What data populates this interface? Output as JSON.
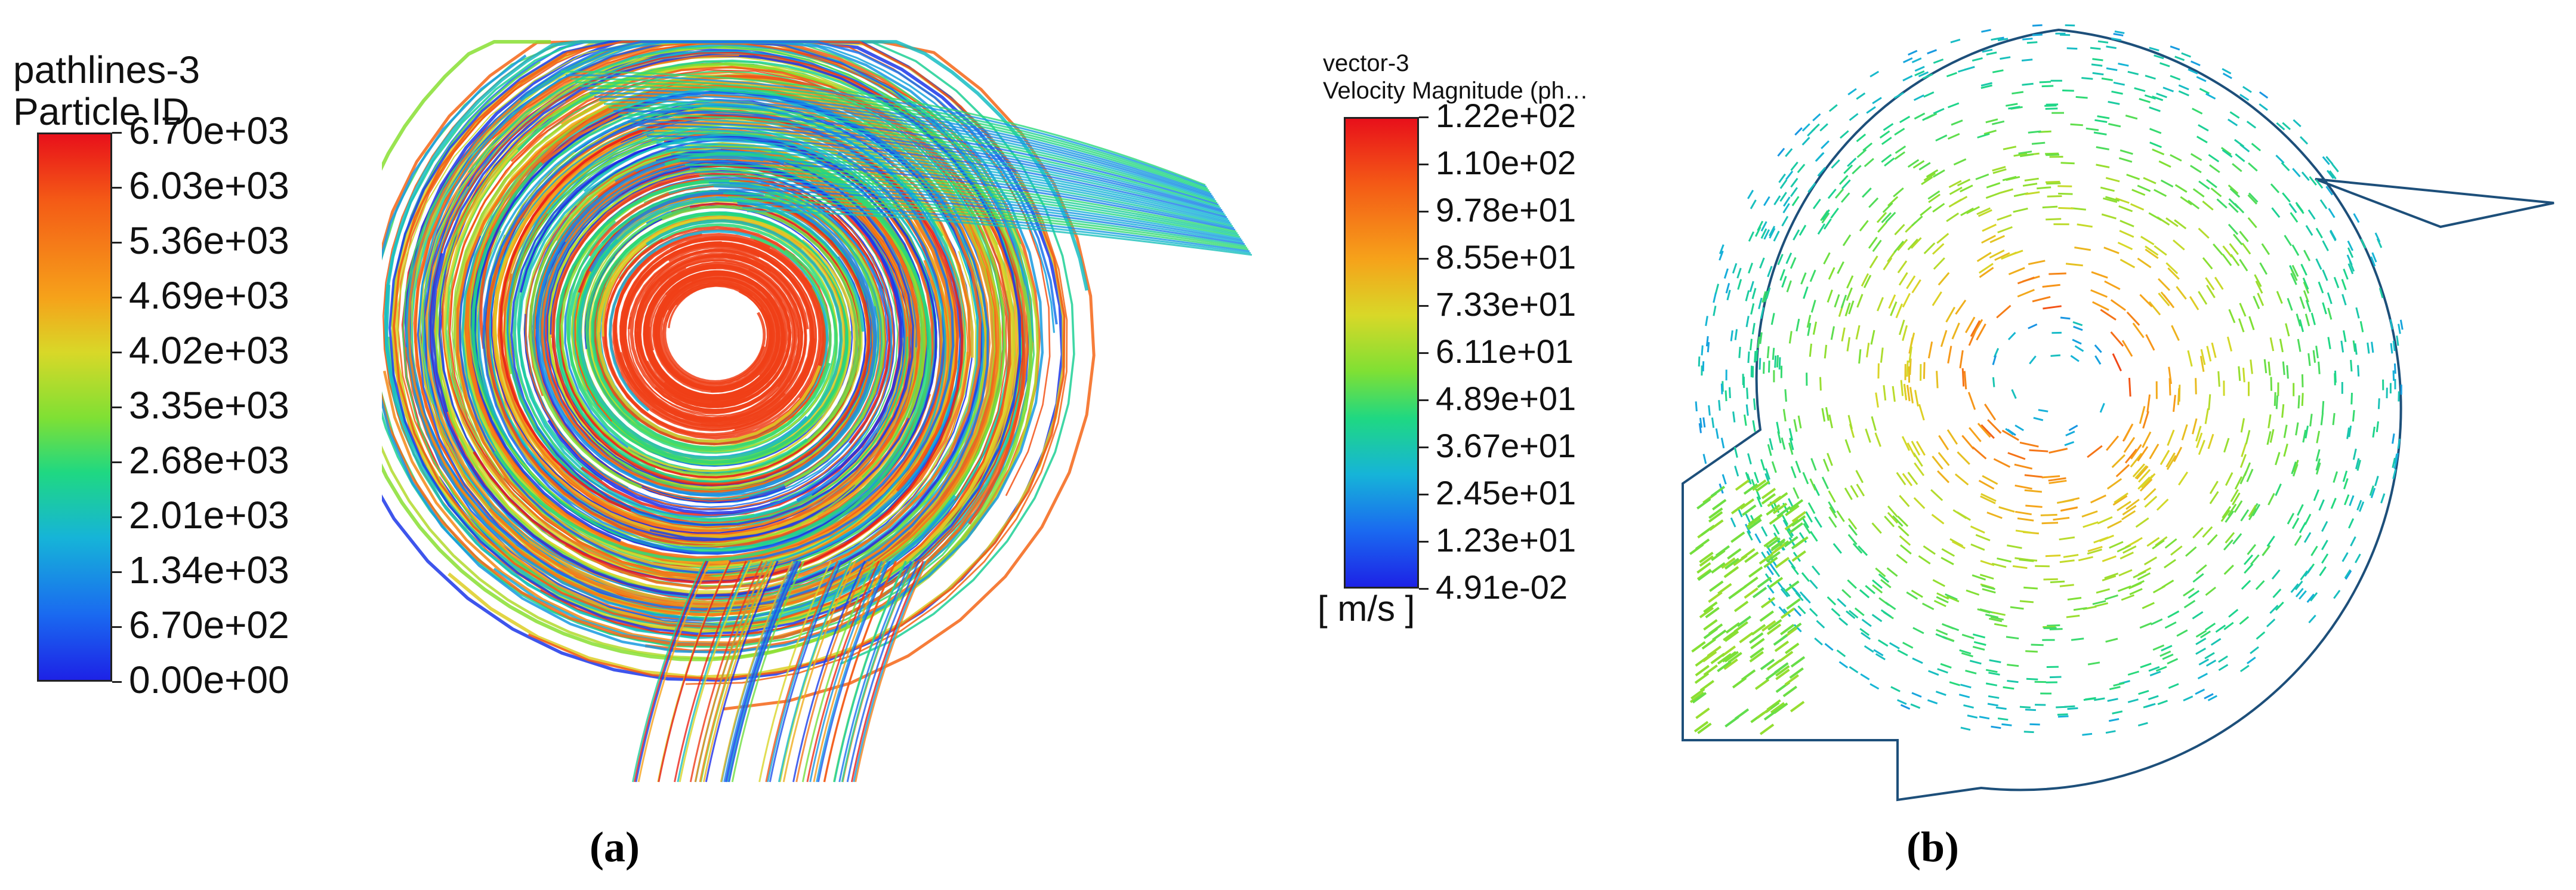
{
  "panel_a": {
    "colorbar": {
      "title_line1": "pathlines-3",
      "title_line2": "Particle ID",
      "ticks": [
        "6.70e+03",
        "6.03e+03",
        "5.36e+03",
        "4.69e+03",
        "4.02e+03",
        "3.35e+03",
        "2.68e+03",
        "2.01e+03",
        "1.34e+03",
        "6.70e+02",
        "0.00e+00"
      ],
      "range": [
        0,
        6700
      ],
      "colormap": [
        "#e8101a",
        "#f45a16",
        "#f6a21a",
        "#d8d828",
        "#7fe034",
        "#1fd882",
        "#16b4d8",
        "#1a6af0",
        "#1d22e6"
      ]
    },
    "caption": "(a)"
  },
  "panel_b": {
    "colorbar": {
      "title_line1": "vector-3",
      "title_line2": "Velocity Magnitude (ph…",
      "ticks": [
        "1.22e+02",
        "1.10e+02",
        "9.78e+01",
        "8.55e+01",
        "7.33e+01",
        "6.11e+01",
        "4.89e+01",
        "3.67e+01",
        "2.45e+01",
        "1.23e+01",
        "4.91e-02"
      ],
      "unit": "[ m/s ]",
      "range": [
        0.0491,
        122
      ],
      "colormap": [
        "#e8101a",
        "#f45a16",
        "#f6a21a",
        "#d8d828",
        "#7fe034",
        "#1fd882",
        "#16b4d8",
        "#1a6af0",
        "#1d22e6"
      ]
    },
    "caption": "(b)"
  }
}
